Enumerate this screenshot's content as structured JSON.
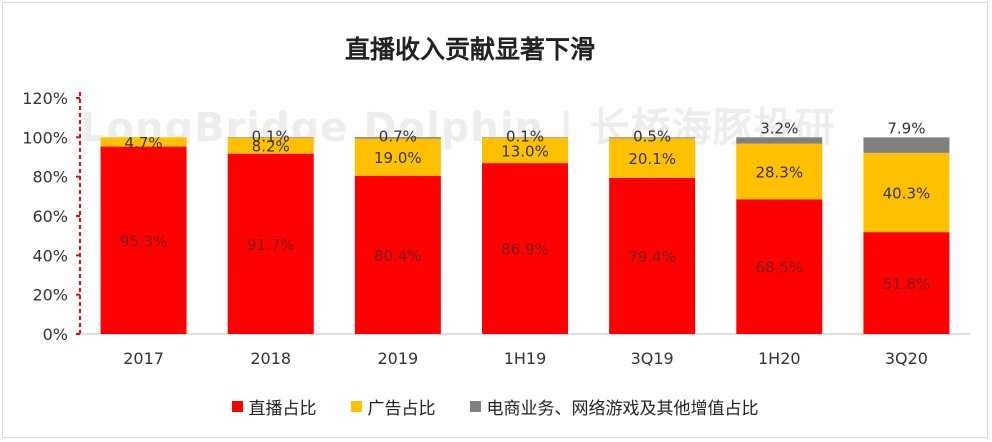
{
  "chart_data": {
    "type": "bar",
    "stacked": true,
    "title": "直播收入贡献显著下滑",
    "categories": [
      "2017",
      "2018",
      "2019",
      "1H19",
      "3Q19",
      "1H20",
      "3Q20"
    ],
    "ylim": [
      0,
      120
    ],
    "y_ticks": [
      "0%",
      "20%",
      "40%",
      "60%",
      "80%",
      "100%",
      "120%"
    ],
    "y_tick_values": [
      0,
      20,
      40,
      60,
      80,
      100,
      120
    ],
    "grid": false,
    "legend_position": "bottom",
    "series": [
      {
        "name": "直播占比",
        "color": "#FF0000",
        "values": [
          95.3,
          91.7,
          80.4,
          86.9,
          79.4,
          68.5,
          51.8
        ],
        "labels": [
          "95.3%",
          "91.7%",
          "80.4%",
          "86.9%",
          "79.4%",
          "68.5%",
          "51.8%"
        ]
      },
      {
        "name": "广告占比",
        "color": "#FFC000",
        "values": [
          4.7,
          8.2,
          19.0,
          13.0,
          20.1,
          28.3,
          40.3
        ],
        "labels": [
          "4.7%",
          "8.2%",
          "19.0%",
          "13.0%",
          "20.1%",
          "28.3%",
          "40.3%"
        ]
      },
      {
        "name": "电商业务、网络游戏及其他增值占比",
        "color": "#808080",
        "values": [
          0,
          0.1,
          0.7,
          0.1,
          0.5,
          3.2,
          7.9
        ],
        "labels": [
          "",
          "0.1%",
          "0.7%",
          "0.1%",
          "0.5%",
          "3.2%",
          "7.9%"
        ]
      }
    ]
  },
  "watermark": "LongBridge Dolphin | 长桥海豚投研"
}
